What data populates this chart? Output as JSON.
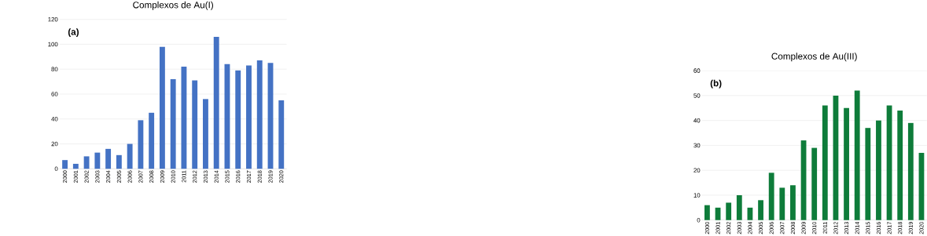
{
  "chart_data": [
    {
      "type": "bar",
      "title": "Complexos de Au(I)",
      "annotations": [
        "(a)"
      ],
      "categories": [
        "2000",
        "2001",
        "2002",
        "2003",
        "2004",
        "2005",
        "2006",
        "2007",
        "2008",
        "2009",
        "2010",
        "2011",
        "2012",
        "2013",
        "2014",
        "2015",
        "2016",
        "2017",
        "2018",
        "2019",
        "2020"
      ],
      "values": [
        7,
        4,
        10,
        13,
        16,
        11,
        20,
        39,
        45,
        98,
        72,
        82,
        71,
        56,
        106,
        84,
        79,
        83,
        87,
        85,
        55
      ],
      "color": "#4472c4",
      "ylim": [
        0,
        120
      ],
      "yticks": [
        0,
        20,
        40,
        60,
        80,
        100,
        120
      ],
      "grid": "y"
    },
    {
      "type": "bar",
      "title": "Complexos de Au(III)",
      "annotations": [
        "(b)"
      ],
      "categories": [
        "2000",
        "2001",
        "2002",
        "2003",
        "2004",
        "2005",
        "2006",
        "2007",
        "2008",
        "2009",
        "2010",
        "2011",
        "2012",
        "2013",
        "2014",
        "2015",
        "2016",
        "2017",
        "2018",
        "2019",
        "2020"
      ],
      "values": [
        6,
        5,
        7,
        10,
        5,
        8,
        19,
        13,
        14,
        32,
        29,
        46,
        50,
        45,
        52,
        37,
        40,
        46,
        44,
        39,
        27
      ],
      "color": "#0e7c3a",
      "ylim": [
        0,
        60
      ],
      "yticks": [
        0,
        10,
        20,
        30,
        40,
        50,
        60
      ],
      "grid": "y"
    }
  ]
}
